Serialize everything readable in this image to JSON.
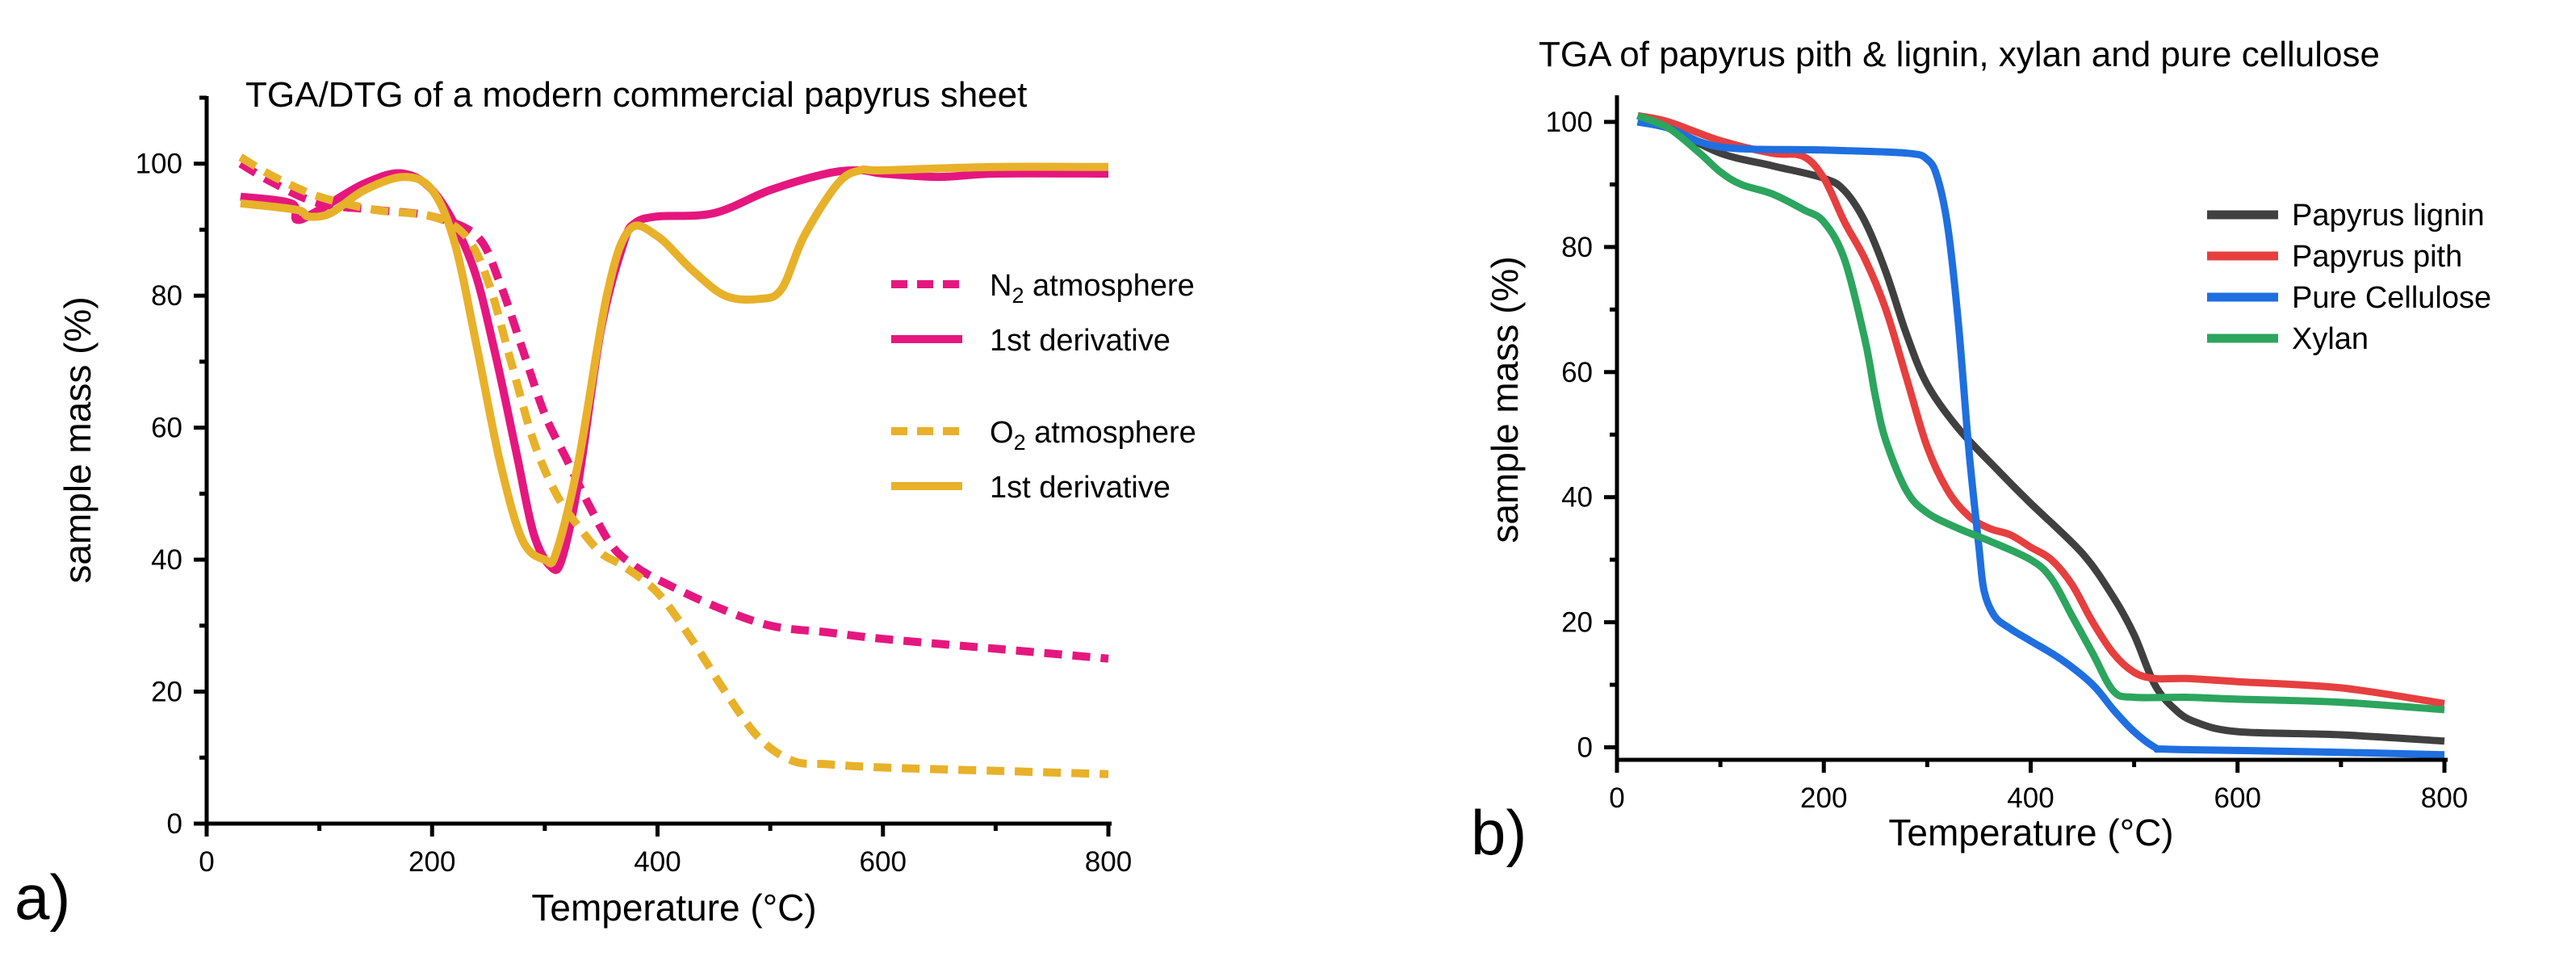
{
  "panel_labels": {
    "a": "a)",
    "b": "b)"
  },
  "chart_data": [
    {
      "type": "line",
      "panel": "a",
      "title": "TGA/DTG  of a modern commercial papyrus sheet",
      "xlabel": "Temperature (°C)",
      "ylabel": "sample mass (%)",
      "xlim": [
        0,
        800
      ],
      "ylim": [
        0,
        110
      ],
      "xticks": [
        0,
        200,
        400,
        600,
        800
      ],
      "yticks": [
        0,
        20,
        40,
        60,
        80,
        100
      ],
      "grid": false,
      "legend_position": "right",
      "series": [
        {
          "name": "N2 atmosphere",
          "legend_main": "N",
          "legend_sub": "2",
          "legend_rest": " atmosphere",
          "color": "#e5177e",
          "style": "dashed",
          "x": [
            30,
            60,
            100,
            150,
            200,
            240,
            260,
            280,
            300,
            320,
            340,
            360,
            380,
            400,
            450,
            500,
            550,
            600,
            700,
            800
          ],
          "y": [
            100,
            97,
            94,
            93,
            92,
            89,
            82,
            72,
            62,
            55,
            48,
            42,
            39,
            37,
            33,
            30,
            29,
            28,
            26.5,
            25
          ]
        },
        {
          "name": "1st derivative",
          "legend_main": "1st derivative",
          "color": "#e5177e",
          "style": "solid",
          "x": [
            30,
            75,
            80,
            100,
            140,
            175,
            205,
            235,
            255,
            275,
            290,
            305,
            315,
            330,
            350,
            370,
            380,
            400,
            450,
            500,
            550,
            580,
            600,
            650,
            700,
            800
          ],
          "y": [
            95,
            94,
            91.5,
            93,
            97,
            98.5,
            95,
            85,
            72,
            56,
            44,
            39,
            40,
            52,
            75,
            88,
            91,
            92,
            92.5,
            96,
            98.5,
            99,
            98.5,
            98,
            98.5,
            98.5
          ]
        },
        {
          "name": "O2 atmosphere",
          "legend_main": "O",
          "legend_sub": "2",
          "legend_rest": " atmosphere",
          "color": "#e8b12a",
          "style": "dashed",
          "x": [
            30,
            60,
            100,
            150,
            200,
            230,
            250,
            270,
            290,
            310,
            330,
            350,
            370,
            400,
            430,
            460,
            490,
            520,
            550,
            600,
            700,
            800
          ],
          "y": [
            101,
            98,
            95,
            93,
            92,
            89,
            82,
            70,
            58,
            50,
            45,
            41,
            39,
            35,
            28,
            20,
            13,
            9.5,
            9,
            8.5,
            8,
            7.5
          ]
        },
        {
          "name": "1st derivative",
          "legend_main": "1st derivative",
          "color": "#e8b12a",
          "style": "solid",
          "x": [
            30,
            80,
            90,
            110,
            140,
            175,
            200,
            220,
            240,
            260,
            280,
            300,
            310,
            330,
            355,
            375,
            400,
            430,
            460,
            490,
            510,
            530,
            560,
            580,
            600,
            700,
            800
          ],
          "y": [
            94,
            93,
            92,
            92.5,
            96,
            98,
            96,
            88,
            72,
            55,
            43,
            40,
            41,
            55,
            80,
            90,
            89,
            84,
            80,
            79.5,
            81,
            89,
            97,
            99,
            99,
            99.5,
            99.5
          ]
        }
      ]
    },
    {
      "type": "line",
      "panel": "b",
      "title": "TGA of papyrus pith & lignin, xylan and pure cellulose",
      "xlabel": "Temperature (°C)",
      "ylabel": "sample mass (%)",
      "xlim": [
        0,
        800
      ],
      "ylim": [
        -2,
        104
      ],
      "xticks": [
        0,
        200,
        400,
        600,
        800
      ],
      "yticks": [
        0,
        20,
        40,
        60,
        80,
        100
      ],
      "grid": false,
      "legend_position": "top-right",
      "series": [
        {
          "name": "Papyrus lignin",
          "color": "#404040",
          "x": [
            20,
            50,
            100,
            150,
            200,
            220,
            240,
            260,
            280,
            300,
            330,
            370,
            400,
            450,
            480,
            500,
            520,
            540,
            560,
            600,
            700,
            800
          ],
          "y": [
            100,
            99,
            95,
            93,
            91,
            89,
            84,
            76,
            66,
            58,
            51,
            44,
            39,
            31,
            24,
            18,
            10,
            6,
            4,
            2.5,
            2,
            1
          ]
        },
        {
          "name": "Papyrus pith",
          "color": "#e63f3f",
          "x": [
            20,
            50,
            100,
            150,
            180,
            200,
            220,
            240,
            260,
            280,
            300,
            320,
            340,
            360,
            380,
            400,
            420,
            440,
            460,
            480,
            500,
            520,
            550,
            600,
            700,
            800
          ],
          "y": [
            101,
            100,
            97,
            95,
            94.5,
            91,
            84,
            78,
            70,
            59,
            48,
            41,
            37,
            35,
            34,
            32,
            30,
            26,
            20,
            15,
            12,
            11,
            11,
            10.5,
            9.5,
            7
          ]
        },
        {
          "name": "Pure Cellulose",
          "color": "#1f6fe0",
          "x": [
            20,
            50,
            100,
            200,
            280,
            300,
            310,
            320,
            330,
            340,
            350,
            355,
            365,
            380,
            400,
            430,
            460,
            480,
            500,
            520,
            530,
            600,
            700,
            800
          ],
          "y": [
            100,
            99,
            96,
            95.5,
            95,
            94,
            91,
            83,
            68,
            48,
            32,
            25,
            21,
            19,
            17,
            14,
            10,
            6,
            2.5,
            0,
            -0.3,
            -0.5,
            -0.8,
            -1.2
          ]
        },
        {
          "name": "Xylan",
          "color": "#2ca55e",
          "x": [
            20,
            50,
            80,
            100,
            120,
            150,
            180,
            200,
            220,
            240,
            250,
            260,
            280,
            300,
            330,
            360,
            400,
            420,
            440,
            460,
            480,
            500,
            550,
            600,
            700,
            800
          ],
          "y": [
            101,
            99,
            95,
            92,
            90,
            88.5,
            86,
            84,
            78,
            65,
            56,
            49,
            41,
            37.5,
            35,
            33,
            30,
            27,
            21,
            15,
            9,
            8,
            8,
            7.7,
            7.2,
            6
          ]
        }
      ]
    }
  ]
}
